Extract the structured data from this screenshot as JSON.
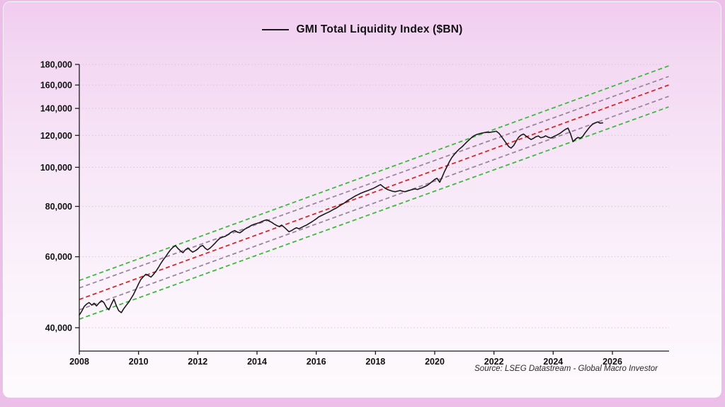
{
  "chart_data": {
    "type": "line",
    "title": "GMI Total Liquidity Index ($BN)",
    "source": "Source: LSEG Datastream - Global Macro Investor",
    "xlabel": "",
    "ylabel": "",
    "y_scale": "log",
    "x_ticks": [
      2008,
      2010,
      2012,
      2014,
      2016,
      2018,
      2020,
      2022,
      2024,
      2026
    ],
    "y_ticks": [
      40000,
      60000,
      80000,
      100000,
      120000,
      140000,
      160000,
      180000
    ],
    "x_axis_end": 2027.9,
    "grid": "horizontal-dotted",
    "legend_position": "top-center",
    "colors": {
      "series": "#1b1b1b",
      "channel_outer": "#3dbb3d",
      "channel_inner": "#9c85a0",
      "channel_mid": "#d42a2a",
      "gridline": "#d9c3d9",
      "axis": "#1b1b1b"
    },
    "trend_channel": [
      {
        "name": "outer-upper",
        "color": "#3dbb3d",
        "start": [
          2008,
          52400
        ],
        "end": [
          2027.9,
          178500
        ]
      },
      {
        "name": "inner-upper",
        "color": "#9c85a0",
        "start": [
          2008,
          50200
        ],
        "end": [
          2027.9,
          168000
        ]
      },
      {
        "name": "midline",
        "color": "#d42a2a",
        "start": [
          2008,
          47000
        ],
        "end": [
          2027.9,
          160000
        ]
      },
      {
        "name": "inner-lower",
        "color": "#9c85a0",
        "start": [
          2008,
          44300
        ],
        "end": [
          2027.9,
          150000
        ]
      },
      {
        "name": "outer-lower",
        "color": "#3dbb3d",
        "start": [
          2008,
          42000
        ],
        "end": [
          2027.9,
          141200
        ]
      }
    ],
    "series": [
      {
        "name": "GMI Total Liquidity Index ($BN)",
        "color": "#1b1b1b",
        "points": [
          [
            2008.0,
            43000
          ],
          [
            2008.08,
            43900
          ],
          [
            2008.17,
            45200
          ],
          [
            2008.25,
            45800
          ],
          [
            2008.33,
            46200
          ],
          [
            2008.42,
            45500
          ],
          [
            2008.5,
            46000
          ],
          [
            2008.58,
            45300
          ],
          [
            2008.67,
            46100
          ],
          [
            2008.75,
            46700
          ],
          [
            2008.83,
            46200
          ],
          [
            2008.92,
            44900
          ],
          [
            2009.0,
            44300
          ],
          [
            2009.08,
            45700
          ],
          [
            2009.17,
            47100
          ],
          [
            2009.25,
            45400
          ],
          [
            2009.33,
            44100
          ],
          [
            2009.42,
            43600
          ],
          [
            2009.5,
            44600
          ],
          [
            2009.58,
            45400
          ],
          [
            2009.67,
            46300
          ],
          [
            2009.75,
            47300
          ],
          [
            2009.83,
            48400
          ],
          [
            2009.92,
            49900
          ],
          [
            2010.0,
            51400
          ],
          [
            2010.08,
            52700
          ],
          [
            2010.17,
            53600
          ],
          [
            2010.25,
            54300
          ],
          [
            2010.33,
            53900
          ],
          [
            2010.42,
            53400
          ],
          [
            2010.5,
            54200
          ],
          [
            2010.58,
            55100
          ],
          [
            2010.67,
            56400
          ],
          [
            2010.75,
            57700
          ],
          [
            2010.83,
            58900
          ],
          [
            2010.92,
            60100
          ],
          [
            2011.0,
            61300
          ],
          [
            2011.08,
            62400
          ],
          [
            2011.17,
            63400
          ],
          [
            2011.25,
            63900
          ],
          [
            2011.33,
            62900
          ],
          [
            2011.42,
            62000
          ],
          [
            2011.5,
            61400
          ],
          [
            2011.58,
            62400
          ],
          [
            2011.67,
            63100
          ],
          [
            2011.75,
            62200
          ],
          [
            2011.83,
            61600
          ],
          [
            2011.92,
            62100
          ],
          [
            2012.0,
            62700
          ],
          [
            2012.08,
            63600
          ],
          [
            2012.17,
            64000
          ],
          [
            2012.25,
            63000
          ],
          [
            2012.33,
            62400
          ],
          [
            2012.42,
            63100
          ],
          [
            2012.5,
            63900
          ],
          [
            2012.58,
            64800
          ],
          [
            2012.67,
            65900
          ],
          [
            2012.75,
            66700
          ],
          [
            2012.83,
            67100
          ],
          [
            2012.92,
            67400
          ],
          [
            2013.0,
            67900
          ],
          [
            2013.08,
            68600
          ],
          [
            2013.17,
            69300
          ],
          [
            2013.25,
            69700
          ],
          [
            2013.33,
            69100
          ],
          [
            2013.42,
            68800
          ],
          [
            2013.5,
            69400
          ],
          [
            2013.58,
            70200
          ],
          [
            2013.67,
            70800
          ],
          [
            2013.75,
            71300
          ],
          [
            2013.83,
            71900
          ],
          [
            2013.92,
            72300
          ],
          [
            2014.0,
            72600
          ],
          [
            2014.08,
            72900
          ],
          [
            2014.17,
            73400
          ],
          [
            2014.25,
            73800
          ],
          [
            2014.33,
            74100
          ],
          [
            2014.42,
            73500
          ],
          [
            2014.5,
            73000
          ],
          [
            2014.58,
            72300
          ],
          [
            2014.67,
            71700
          ],
          [
            2014.75,
            71300
          ],
          [
            2014.83,
            71900
          ],
          [
            2014.92,
            71000
          ],
          [
            2015.0,
            70100
          ],
          [
            2015.08,
            69200
          ],
          [
            2015.17,
            69700
          ],
          [
            2015.25,
            70300
          ],
          [
            2015.33,
            70800
          ],
          [
            2015.42,
            70400
          ],
          [
            2015.5,
            70900
          ],
          [
            2015.58,
            71400
          ],
          [
            2015.67,
            71900
          ],
          [
            2015.75,
            72500
          ],
          [
            2015.83,
            73100
          ],
          [
            2015.92,
            73800
          ],
          [
            2016.0,
            74500
          ],
          [
            2016.08,
            75300
          ],
          [
            2016.17,
            75900
          ],
          [
            2016.25,
            76400
          ],
          [
            2016.33,
            76900
          ],
          [
            2016.42,
            77400
          ],
          [
            2016.5,
            78000
          ],
          [
            2016.58,
            78600
          ],
          [
            2016.67,
            79200
          ],
          [
            2016.75,
            79900
          ],
          [
            2016.83,
            80600
          ],
          [
            2016.92,
            81300
          ],
          [
            2017.0,
            82100
          ],
          [
            2017.08,
            82900
          ],
          [
            2017.17,
            83600
          ],
          [
            2017.25,
            84300
          ],
          [
            2017.33,
            85000
          ],
          [
            2017.42,
            85600
          ],
          [
            2017.5,
            86200
          ],
          [
            2017.58,
            86700
          ],
          [
            2017.67,
            87200
          ],
          [
            2017.75,
            87600
          ],
          [
            2017.83,
            88100
          ],
          [
            2017.92,
            88600
          ],
          [
            2018.0,
            89200
          ],
          [
            2018.08,
            89900
          ],
          [
            2018.17,
            90600
          ],
          [
            2018.25,
            89600
          ],
          [
            2018.33,
            88700
          ],
          [
            2018.42,
            88000
          ],
          [
            2018.5,
            87600
          ],
          [
            2018.58,
            87200
          ],
          [
            2018.67,
            87000
          ],
          [
            2018.75,
            87300
          ],
          [
            2018.83,
            87600
          ],
          [
            2018.92,
            87200
          ],
          [
            2019.0,
            87000
          ],
          [
            2019.08,
            87400
          ],
          [
            2019.17,
            87800
          ],
          [
            2019.25,
            88100
          ],
          [
            2019.33,
            88400
          ],
          [
            2019.42,
            88100
          ],
          [
            2019.5,
            88600
          ],
          [
            2019.58,
            89000
          ],
          [
            2019.67,
            89600
          ],
          [
            2019.75,
            90200
          ],
          [
            2019.83,
            91100
          ],
          [
            2019.92,
            92300
          ],
          [
            2020.0,
            93300
          ],
          [
            2020.08,
            93900
          ],
          [
            2020.17,
            91800
          ],
          [
            2020.25,
            94600
          ],
          [
            2020.33,
            97600
          ],
          [
            2020.42,
            100600
          ],
          [
            2020.5,
            103400
          ],
          [
            2020.58,
            105800
          ],
          [
            2020.67,
            107800
          ],
          [
            2020.75,
            109500
          ],
          [
            2020.83,
            111000
          ],
          [
            2020.92,
            112400
          ],
          [
            2021.0,
            113900
          ],
          [
            2021.08,
            115500
          ],
          [
            2021.17,
            117100
          ],
          [
            2021.25,
            118600
          ],
          [
            2021.33,
            119800
          ],
          [
            2021.42,
            120600
          ],
          [
            2021.5,
            121100
          ],
          [
            2021.58,
            121500
          ],
          [
            2021.67,
            121900
          ],
          [
            2021.75,
            122200
          ],
          [
            2021.83,
            122000
          ],
          [
            2021.92,
            122300
          ],
          [
            2022.0,
            122600
          ],
          [
            2022.08,
            122900
          ],
          [
            2022.17,
            121400
          ],
          [
            2022.25,
            119300
          ],
          [
            2022.33,
            117100
          ],
          [
            2022.42,
            114700
          ],
          [
            2022.5,
            112500
          ],
          [
            2022.58,
            111600
          ],
          [
            2022.67,
            113400
          ],
          [
            2022.75,
            116100
          ],
          [
            2022.83,
            118700
          ],
          [
            2022.92,
            120300
          ],
          [
            2023.0,
            120900
          ],
          [
            2023.08,
            119600
          ],
          [
            2023.17,
            118300
          ],
          [
            2023.25,
            117200
          ],
          [
            2023.33,
            117900
          ],
          [
            2023.42,
            119100
          ],
          [
            2023.5,
            119600
          ],
          [
            2023.58,
            118400
          ],
          [
            2023.67,
            118900
          ],
          [
            2023.75,
            119700
          ],
          [
            2023.83,
            118800
          ],
          [
            2023.92,
            118200
          ],
          [
            2024.0,
            119000
          ],
          [
            2024.08,
            119800
          ],
          [
            2024.17,
            120700
          ],
          [
            2024.25,
            121700
          ],
          [
            2024.33,
            123000
          ],
          [
            2024.42,
            124300
          ],
          [
            2024.5,
            125100
          ],
          [
            2024.58,
            121400
          ],
          [
            2024.67,
            115800
          ],
          [
            2024.75,
            117400
          ],
          [
            2024.83,
            118600
          ],
          [
            2024.92,
            118100
          ],
          [
            2025.0,
            119400
          ],
          [
            2025.08,
            121800
          ],
          [
            2025.17,
            124200
          ],
          [
            2025.25,
            126300
          ],
          [
            2025.33,
            127900
          ],
          [
            2025.42,
            128900
          ],
          [
            2025.5,
            129600
          ],
          [
            2025.58,
            128700
          ],
          [
            2025.67,
            128900
          ]
        ]
      }
    ]
  }
}
